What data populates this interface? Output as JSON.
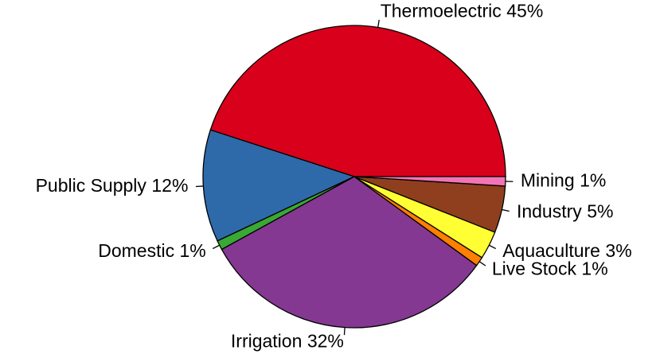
{
  "chart_data": {
    "type": "pie",
    "categories": [
      "Thermoelectric",
      "Public Supply",
      "Domestic",
      "Irrigation",
      "Live Stock",
      "Aquaculture",
      "Industry",
      "Mining"
    ],
    "values": [
      45,
      12,
      1,
      32,
      1,
      3,
      5,
      1
    ],
    "value_labels": [
      "45%",
      "12%",
      "1%",
      "32%",
      "1%",
      "3%",
      "5%",
      "1%"
    ],
    "colors": [
      "#d9001b",
      "#2e6aa9",
      "#3aa834",
      "#843891",
      "#ff7f00",
      "#ffff33",
      "#8f3f1e",
      "#f374b4"
    ]
  }
}
